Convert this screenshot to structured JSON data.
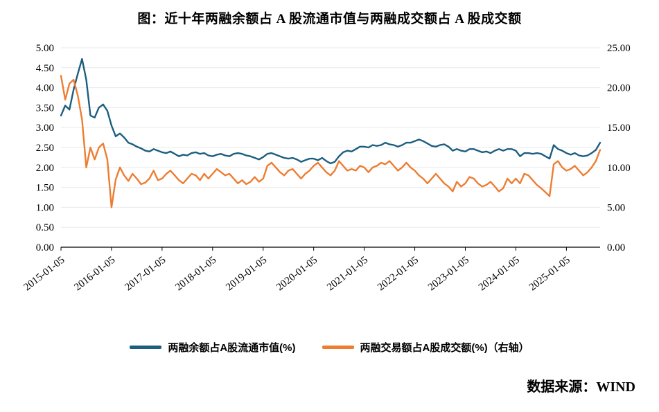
{
  "title": "图：近十年两融余额占 A 股流通市值与两融成交额占 A 股成交额",
  "source": "数据来源：WIND",
  "legend": [
    {
      "label": "两融余额占A股流通市值(%)"
    },
    {
      "label": "两融交易额占A股成交额(%)（右轴）"
    }
  ],
  "chart_data": {
    "type": "line",
    "title": "图：近十年两融余额占 A 股流通市值与两融成交额占 A 股成交额",
    "x_unit": "month",
    "x_start": "2015-01",
    "x_tick_labels": [
      "2015-01-05",
      "2016-01-05",
      "2017-01-05",
      "2018-01-05",
      "2019-01-05",
      "2020-01-05",
      "2021-01-05",
      "2022-01-05",
      "2023-01-05",
      "2024-01-05",
      "2025-01-05"
    ],
    "x_tick_month_index": [
      0,
      12,
      24,
      36,
      48,
      60,
      72,
      84,
      96,
      108,
      120
    ],
    "left_axis": {
      "min": 0,
      "max": 5,
      "tick_step": 0.5,
      "tick_labels": [
        "0.00",
        "0.50",
        "1.00",
        "1.50",
        "2.00",
        "2.50",
        "3.00",
        "3.50",
        "4.00",
        "4.50",
        "5.00"
      ]
    },
    "right_axis": {
      "min": 0,
      "max": 25,
      "tick_step": 5,
      "tick_labels": [
        "0.00",
        "5.00",
        "10.00",
        "15.00",
        "20.00",
        "25.00"
      ]
    },
    "grid": true,
    "legend_position": "bottom",
    "series": [
      {
        "name": "两融余额占A股流通市值(%)",
        "axis": "left",
        "color": "#1B5E7F",
        "values": [
          3.3,
          3.55,
          3.45,
          3.95,
          4.35,
          4.72,
          4.2,
          3.3,
          3.25,
          3.5,
          3.58,
          3.42,
          3.05,
          2.78,
          2.85,
          2.75,
          2.62,
          2.58,
          2.52,
          2.48,
          2.42,
          2.4,
          2.46,
          2.42,
          2.38,
          2.36,
          2.4,
          2.34,
          2.28,
          2.32,
          2.3,
          2.36,
          2.38,
          2.34,
          2.36,
          2.3,
          2.28,
          2.32,
          2.34,
          2.3,
          2.28,
          2.34,
          2.36,
          2.34,
          2.3,
          2.28,
          2.24,
          2.2,
          2.26,
          2.34,
          2.36,
          2.32,
          2.28,
          2.24,
          2.22,
          2.24,
          2.2,
          2.14,
          2.18,
          2.22,
          2.22,
          2.18,
          2.24,
          2.16,
          2.1,
          2.14,
          2.28,
          2.38,
          2.42,
          2.4,
          2.46,
          2.52,
          2.52,
          2.5,
          2.56,
          2.54,
          2.56,
          2.62,
          2.58,
          2.56,
          2.52,
          2.56,
          2.62,
          2.62,
          2.66,
          2.7,
          2.66,
          2.6,
          2.54,
          2.52,
          2.56,
          2.58,
          2.52,
          2.42,
          2.46,
          2.42,
          2.4,
          2.46,
          2.46,
          2.42,
          2.38,
          2.4,
          2.36,
          2.42,
          2.46,
          2.42,
          2.46,
          2.46,
          2.42,
          2.28,
          2.36,
          2.36,
          2.34,
          2.36,
          2.34,
          2.28,
          2.22,
          2.56,
          2.46,
          2.42,
          2.36,
          2.32,
          2.36,
          2.3,
          2.28,
          2.3,
          2.36,
          2.44,
          2.62
        ]
      },
      {
        "name": "两融交易额占A股成交额(%)（右轴）",
        "axis": "right",
        "color": "#ED7D31",
        "values": [
          21.5,
          18.5,
          20.5,
          21.0,
          19.0,
          16.0,
          10.0,
          12.5,
          11.0,
          12.5,
          13.0,
          11.0,
          5.0,
          8.5,
          10.0,
          9.0,
          8.3,
          9.2,
          8.6,
          7.9,
          8.1,
          8.6,
          9.6,
          8.4,
          8.6,
          9.2,
          9.6,
          9.0,
          8.4,
          8.0,
          8.6,
          9.2,
          9.0,
          8.4,
          9.2,
          8.6,
          9.2,
          9.8,
          9.4,
          9.0,
          9.2,
          8.6,
          8.0,
          8.4,
          7.9,
          8.2,
          8.8,
          8.2,
          8.6,
          10.2,
          10.6,
          10.0,
          9.4,
          9.0,
          9.6,
          9.8,
          9.2,
          8.6,
          9.2,
          9.6,
          10.2,
          10.6,
          10.0,
          9.4,
          9.0,
          9.6,
          10.8,
          10.2,
          9.6,
          9.8,
          9.6,
          10.2,
          10.0,
          9.4,
          10.0,
          10.2,
          10.6,
          10.4,
          10.8,
          10.2,
          9.6,
          10.0,
          10.6,
          10.0,
          9.6,
          9.0,
          8.6,
          8.0,
          8.6,
          9.2,
          8.6,
          8.0,
          7.6,
          7.0,
          8.2,
          7.6,
          8.0,
          8.8,
          8.6,
          8.0,
          7.6,
          7.8,
          8.2,
          7.6,
          7.0,
          7.4,
          8.6,
          8.0,
          8.6,
          8.0,
          9.2,
          9.0,
          8.4,
          7.8,
          7.4,
          6.9,
          6.4,
          10.4,
          10.8,
          10.0,
          9.6,
          9.8,
          10.2,
          9.6,
          9.0,
          9.4,
          10.0,
          10.8,
          12.2
        ]
      }
    ]
  }
}
